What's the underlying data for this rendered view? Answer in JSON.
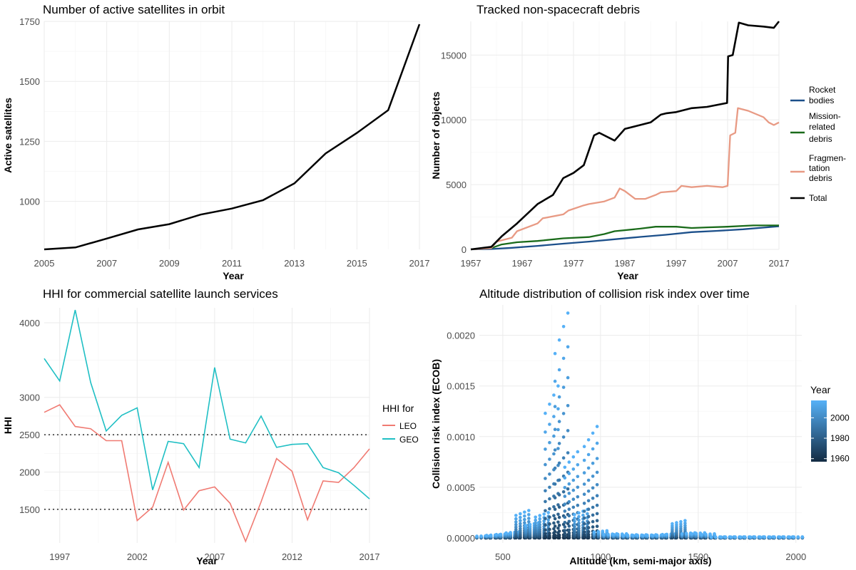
{
  "chart_data": [
    {
      "id": "satellites",
      "type": "line",
      "title": "Number of active satellites in orbit",
      "xlabel": "Year",
      "ylabel": "Active satellites",
      "xlim": [
        2005,
        2017
      ],
      "ylim": [
        800,
        1750
      ],
      "xticks": [
        2005,
        2007,
        2009,
        2011,
        2013,
        2015,
        2017
      ],
      "yticks": [
        1000,
        1250,
        1500,
        1750
      ],
      "grid": true,
      "series": [
        {
          "color": "#000000",
          "x": [
            2005,
            2006,
            2007,
            2008,
            2009,
            2010,
            2011,
            2012,
            2013,
            2014,
            2015,
            2016,
            2017
          ],
          "y": [
            800,
            808,
            845,
            883,
            905,
            945,
            970,
            1005,
            1075,
            1200,
            1285,
            1380,
            1738
          ]
        }
      ]
    },
    {
      "id": "debris",
      "type": "line",
      "title": "Tracked non-spacecraft debris",
      "xlabel": "Year",
      "ylabel": "Number of objects",
      "xlim": [
        1957,
        2017
      ],
      "ylim": [
        0,
        17600
      ],
      "xticks": [
        1957,
        1967,
        1977,
        1987,
        1997,
        2007,
        2017
      ],
      "yticks": [
        0,
        5000,
        10000,
        15000
      ],
      "grid": true,
      "legend_position": "right",
      "series": [
        {
          "name": "Rocket bodies",
          "label_lines": [
            "Rocket",
            "bodies"
          ],
          "color": "#1b4f8a",
          "x": [
            1957,
            1961,
            1965,
            1970,
            1975,
            1980,
            1985,
            1990,
            1995,
            2000,
            2005,
            2010,
            2017
          ],
          "y": [
            0,
            30,
            120,
            270,
            440,
            600,
            780,
            960,
            1130,
            1330,
            1430,
            1550,
            1780
          ]
        },
        {
          "name": "Mission-related debris",
          "label_lines": [
            "Mission-",
            "related",
            "debris"
          ],
          "color": "#1a6b1a",
          "x": [
            1957,
            1961,
            1963,
            1966,
            1970,
            1975,
            1980,
            1983,
            1985,
            1990,
            1993,
            1997,
            2000,
            2003,
            2007,
            2012,
            2017
          ],
          "y": [
            0,
            100,
            380,
            550,
            650,
            850,
            950,
            1180,
            1400,
            1600,
            1750,
            1750,
            1650,
            1700,
            1750,
            1850,
            1850
          ]
        },
        {
          "name": "Fragmentation debris",
          "label_lines": [
            "Fragmen-",
            "tation",
            "debris"
          ],
          "color": "#e89a84",
          "x": [
            1957,
            1961,
            1962,
            1965,
            1966,
            1970,
            1971,
            1975,
            1976,
            1979,
            1980,
            1983,
            1985,
            1986,
            1987,
            1989,
            1991,
            1993,
            1994,
            1997,
            1998,
            2000,
            2003,
            2006,
            2007,
            2007.5,
            2008.5,
            2009,
            2011,
            2014,
            2015,
            2016,
            2017
          ],
          "y": [
            0,
            100,
            600,
            900,
            1400,
            2000,
            2400,
            2700,
            3000,
            3400,
            3500,
            3700,
            4000,
            4700,
            4500,
            3900,
            3900,
            4200,
            4400,
            4500,
            4900,
            4800,
            4900,
            4800,
            4900,
            8800,
            9000,
            10900,
            10700,
            10200,
            9800,
            9600,
            9800
          ]
        },
        {
          "name": "Total",
          "label_lines": [
            "Total"
          ],
          "color": "#000000",
          "x": [
            1957,
            1961,
            1963,
            1966,
            1970,
            1973,
            1975,
            1977,
            1979,
            1981,
            1982,
            1985,
            1987,
            1989,
            1992,
            1994,
            1995,
            1997,
            2000,
            2003,
            2006.9,
            2007.1,
            2008,
            2009.2,
            2011,
            2014,
            2016,
            2017
          ],
          "y": [
            0,
            200,
            1000,
            2000,
            3500,
            4200,
            5500,
            5900,
            6500,
            8800,
            9000,
            8400,
            9300,
            9500,
            9800,
            10400,
            10500,
            10600,
            10900,
            11000,
            11300,
            14900,
            15000,
            17500,
            17300,
            17200,
            17100,
            17600
          ]
        }
      ]
    },
    {
      "id": "hhi",
      "type": "line",
      "title": "HHI for commercial satellite launch services",
      "xlabel": "Year",
      "ylabel": "HHI",
      "xlim": [
        1996,
        2017
      ],
      "ylim": [
        1050,
        4200
      ],
      "xticks": [
        1997,
        2002,
        2007,
        2012,
        2017
      ],
      "yticks": [
        1500,
        2000,
        2500,
        3000,
        4000
      ],
      "grid": true,
      "legend_title": "HHI for",
      "legend_position": "right",
      "reference_lines": [
        1500,
        2500
      ],
      "series": [
        {
          "name": "LEO",
          "color": "#f07a72",
          "x": [
            1996,
            1997,
            1998,
            1999,
            2000,
            2001,
            2002,
            2003,
            2004,
            2005,
            2006,
            2007,
            2008,
            2009,
            2010,
            2011,
            2012,
            2013,
            2014,
            2015,
            2016,
            2017
          ],
          "y": [
            2800,
            2900,
            2610,
            2580,
            2420,
            2420,
            1350,
            1530,
            2130,
            1490,
            1750,
            1800,
            1580,
            1070,
            1600,
            2180,
            2010,
            1360,
            1880,
            1860,
            2060,
            2310
          ]
        },
        {
          "name": "GEO",
          "color": "#1fbfc4",
          "x": [
            1996,
            1997,
            1998,
            1999,
            2000,
            2001,
            2002,
            2003,
            2004,
            2005,
            2006,
            2007,
            2008,
            2009,
            2010,
            2011,
            2012,
            2013,
            2014,
            2015,
            2016,
            2017
          ],
          "y": [
            3520,
            3220,
            4170,
            3200,
            2550,
            2760,
            2860,
            1760,
            2410,
            2380,
            2060,
            3400,
            2440,
            2390,
            2750,
            2330,
            2370,
            2380,
            2060,
            1990,
            1820,
            1640
          ]
        }
      ]
    },
    {
      "id": "collision",
      "type": "scatter",
      "title": "Altitude distribution of collision risk index over time",
      "xlabel": "Altitude (km, semi-major axis)",
      "ylabel": "Collision risk index (ECOB)",
      "xlim": [
        380,
        2030
      ],
      "ylim": [
        -5e-05,
        0.0023
      ],
      "xticks": [
        500,
        1000,
        1500,
        2000
      ],
      "yticks": [
        0.0,
        0.0005,
        0.001,
        0.0015,
        0.002
      ],
      "ytick_labels": [
        "0.0000",
        "0.0005",
        "0.0010",
        "0.0015",
        "0.0020"
      ],
      "grid": true,
      "legend_title": "Year",
      "legend_position": "right",
      "color_scale": {
        "low": "#132b43",
        "high": "#56b1f7",
        "range": [
          1957,
          2017
        ],
        "ticks": [
          1960,
          1980,
          2000
        ]
      },
      "peaks": [
        {
          "x": 400,
          "max": 2e-05
        },
        {
          "x": 450,
          "max": 3e-05
        },
        {
          "x": 500,
          "max": 4e-05
        },
        {
          "x": 550,
          "max": 6e-05
        },
        {
          "x": 600,
          "max": 0.00027
        },
        {
          "x": 650,
          "max": 0.00015
        },
        {
          "x": 700,
          "max": 0.00025
        },
        {
          "x": 750,
          "max": 0.0015
        },
        {
          "x": 800,
          "max": 0.00222
        },
        {
          "x": 850,
          "max": 0.00085
        },
        {
          "x": 900,
          "max": 0.00028
        },
        {
          "x": 950,
          "max": 0.0011
        },
        {
          "x": 1000,
          "max": 7e-05
        },
        {
          "x": 1050,
          "max": 4e-05
        },
        {
          "x": 1100,
          "max": 4e-05
        },
        {
          "x": 1150,
          "max": 3e-05
        },
        {
          "x": 1200,
          "max": 3e-05
        },
        {
          "x": 1250,
          "max": 3e-05
        },
        {
          "x": 1300,
          "max": 3e-05
        },
        {
          "x": 1350,
          "max": 4e-05
        },
        {
          "x": 1400,
          "max": 0.00017
        },
        {
          "x": 1450,
          "max": 5e-05
        },
        {
          "x": 1500,
          "max": 5e-05
        },
        {
          "x": 1550,
          "max": 4e-05
        },
        {
          "x": 1600,
          "max": 1e-05
        },
        {
          "x": 1650,
          "max": 1e-05
        },
        {
          "x": 1700,
          "max": 1e-05
        },
        {
          "x": 1750,
          "max": 1e-05
        },
        {
          "x": 1800,
          "max": 1e-05
        },
        {
          "x": 1850,
          "max": 1e-05
        },
        {
          "x": 1900,
          "max": 1e-05
        },
        {
          "x": 1950,
          "max": 1e-05
        },
        {
          "x": 2000,
          "max": 1e-05
        }
      ]
    }
  ]
}
